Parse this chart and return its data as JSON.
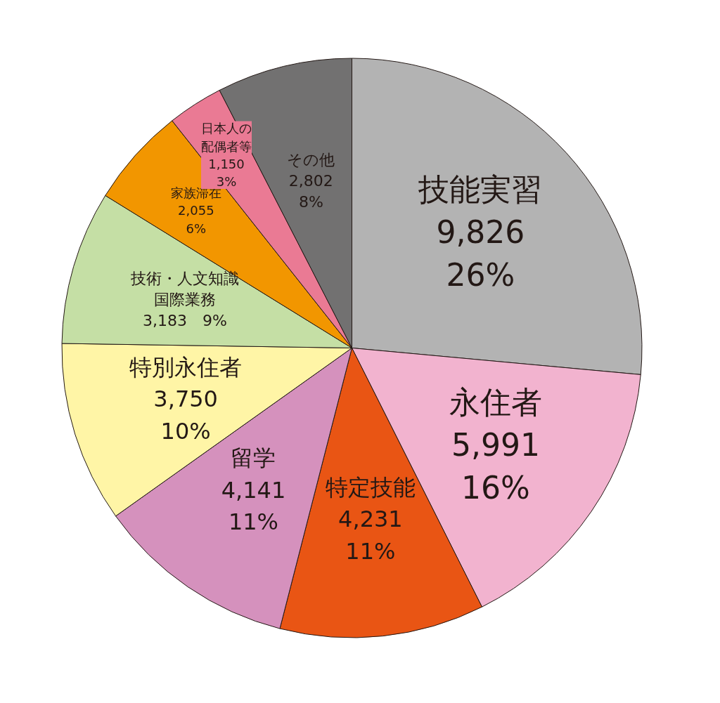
{
  "chart_data": {
    "type": "pie",
    "categories": [
      "技能実習",
      "永住者",
      "特定技能",
      "留学",
      "特別永住者",
      "技術・人文知識国際業務",
      "家族滞在",
      "日本人の配偶者等",
      "その他"
    ],
    "values": [
      9826,
      5991,
      4231,
      4141,
      3750,
      3183,
      2055,
      1150,
      2802
    ],
    "value_labels": [
      "9,826\n26%",
      "5,991\n16%",
      "4,231\n11%",
      "4,141\n11%",
      "3,750\n10%",
      "3,183　9%",
      "2,055\n6%",
      "1,150\n3%",
      "2,802\n8%"
    ],
    "colors": [
      "#b3b3b3",
      "#f2b3cf",
      "#e95514",
      "#d591bd",
      "#fff5a6",
      "#c5dfa5",
      "#f29600",
      "#ea7a94",
      "#727171"
    ]
  }
}
